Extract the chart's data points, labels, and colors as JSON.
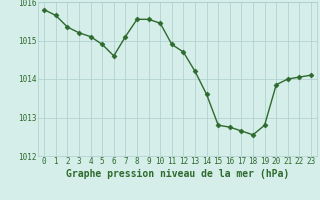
{
  "x": [
    0,
    1,
    2,
    3,
    4,
    5,
    6,
    7,
    8,
    9,
    10,
    11,
    12,
    13,
    14,
    15,
    16,
    17,
    18,
    19,
    20,
    21,
    22,
    23
  ],
  "y": [
    1015.8,
    1015.65,
    1015.35,
    1015.2,
    1015.1,
    1014.9,
    1014.6,
    1015.1,
    1015.55,
    1015.55,
    1015.45,
    1014.9,
    1014.7,
    1014.2,
    1013.6,
    1012.8,
    1012.75,
    1012.65,
    1012.55,
    1012.8,
    1013.85,
    1014.0,
    1014.05,
    1014.1
  ],
  "line_color": "#2d6a2d",
  "marker": "D",
  "marker_size": 2.5,
  "bg_color": "#d5eee9",
  "grid_color": "#aacccc",
  "xlabel": "Graphe pression niveau de la mer (hPa)",
  "xlabel_fontsize": 7,
  "xlabel_color": "#2d6a2d",
  "ylim": [
    1012.0,
    1016.0
  ],
  "xlim_min": -0.5,
  "xlim_max": 23.5,
  "yticks": [
    1012,
    1013,
    1014,
    1015,
    1016
  ],
  "xtick_fontsize": 5.5,
  "ytick_fontsize": 5.5,
  "tick_color": "#2d6a2d",
  "line_width": 1.0
}
